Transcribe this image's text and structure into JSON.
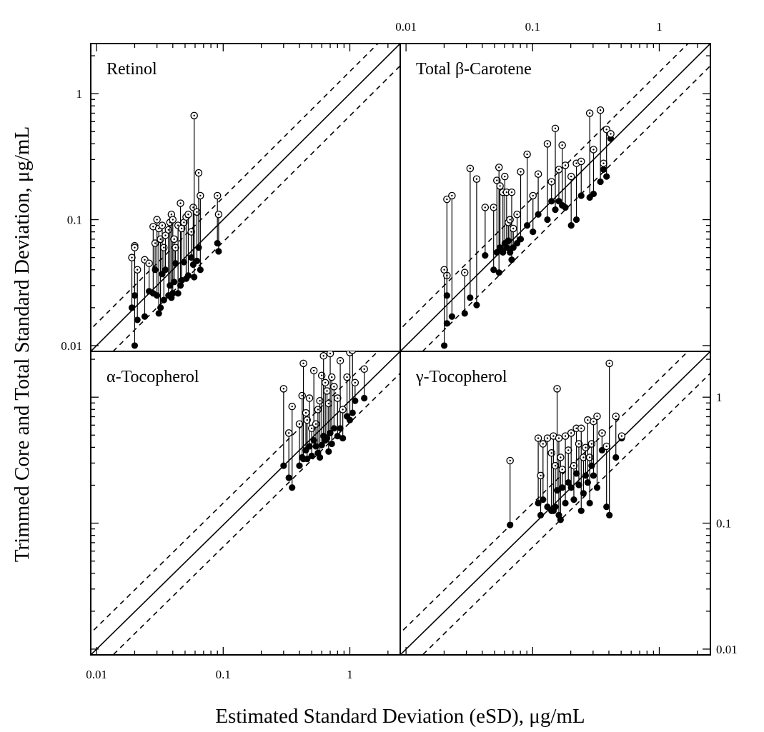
{
  "chart_data": {
    "type": "scatter",
    "xlabel": "Estimated Standard Deviation (eSD),  μg/mL",
    "ylabel": "Trimmed Core and Total Standard Deviation,  μg/mL",
    "scale": "log-log",
    "xlim": [
      0.009,
      2.5
    ],
    "ylim": [
      0.009,
      2.5
    ],
    "tick_labels": [
      "0.01",
      "0.1",
      "1"
    ],
    "reference_lines": {
      "solid": "y = x",
      "dashed": [
        "y = 1.5x",
        "y = x/1.5"
      ]
    },
    "markers": {
      "open_circle": "total SD",
      "filled_circle": "trimmed core SD"
    },
    "panels": [
      {
        "title": "Retinol",
        "pairs": [
          [
            0.019,
            0.02,
            0.05
          ],
          [
            0.02,
            0.025,
            0.062
          ],
          [
            0.02,
            0.01,
            0.06
          ],
          [
            0.021,
            0.016,
            0.04
          ],
          [
            0.024,
            0.017,
            0.048
          ],
          [
            0.026,
            0.027,
            0.045
          ],
          [
            0.028,
            0.026,
            0.088
          ],
          [
            0.029,
            0.04,
            0.065
          ],
          [
            0.03,
            0.025,
            0.1
          ],
          [
            0.031,
            0.018,
            0.085
          ],
          [
            0.032,
            0.02,
            0.07
          ],
          [
            0.033,
            0.037,
            0.09
          ],
          [
            0.034,
            0.023,
            0.06
          ],
          [
            0.035,
            0.04,
            0.075
          ],
          [
            0.037,
            0.025,
            0.083
          ],
          [
            0.038,
            0.03,
            0.095
          ],
          [
            0.039,
            0.024,
            0.11
          ],
          [
            0.04,
            0.026,
            0.1
          ],
          [
            0.041,
            0.032,
            0.07
          ],
          [
            0.042,
            0.045,
            0.06
          ],
          [
            0.044,
            0.026,
            0.09
          ],
          [
            0.046,
            0.03,
            0.135
          ],
          [
            0.047,
            0.033,
            0.085
          ],
          [
            0.049,
            0.046,
            0.095
          ],
          [
            0.051,
            0.034,
            0.105
          ],
          [
            0.053,
            0.036,
            0.11
          ],
          [
            0.056,
            0.05,
            0.08
          ],
          [
            0.058,
            0.044,
            0.125
          ],
          [
            0.059,
            0.035,
            0.67
          ],
          [
            0.062,
            0.047,
            0.115
          ],
          [
            0.064,
            0.06,
            0.235
          ],
          [
            0.066,
            0.04,
            0.155
          ],
          [
            0.09,
            0.065,
            0.155
          ],
          [
            0.092,
            0.056,
            0.11
          ]
        ]
      },
      {
        "title": "Total β-Carotene",
        "pairs": [
          [
            0.02,
            0.01,
            0.04
          ],
          [
            0.021,
            0.015,
            0.036
          ],
          [
            0.021,
            0.025,
            0.145
          ],
          [
            0.023,
            0.017,
            0.155
          ],
          [
            0.029,
            0.018,
            0.038
          ],
          [
            0.032,
            0.024,
            0.255
          ],
          [
            0.036,
            0.021,
            0.21
          ],
          [
            0.042,
            0.052,
            0.125
          ],
          [
            0.049,
            0.04,
            0.125
          ],
          [
            0.052,
            0.055,
            0.205
          ],
          [
            0.054,
            0.038,
            0.26
          ],
          [
            0.055,
            0.06,
            0.185
          ],
          [
            0.058,
            0.055,
            0.165
          ],
          [
            0.06,
            0.065,
            0.22
          ],
          [
            0.062,
            0.06,
            0.165
          ],
          [
            0.064,
            0.068,
            0.095
          ],
          [
            0.066,
            0.055,
            0.1
          ],
          [
            0.068,
            0.048,
            0.165
          ],
          [
            0.07,
            0.06,
            0.085
          ],
          [
            0.075,
            0.065,
            0.11
          ],
          [
            0.08,
            0.07,
            0.24
          ],
          [
            0.09,
            0.09,
            0.33
          ],
          [
            0.1,
            0.08,
            0.155
          ],
          [
            0.11,
            0.11,
            0.23
          ],
          [
            0.13,
            0.1,
            0.4
          ],
          [
            0.14,
            0.14,
            0.2
          ],
          [
            0.15,
            0.12,
            0.53
          ],
          [
            0.16,
            0.14,
            0.25
          ],
          [
            0.17,
            0.13,
            0.39
          ],
          [
            0.18,
            0.125,
            0.27
          ],
          [
            0.2,
            0.09,
            0.22
          ],
          [
            0.22,
            0.1,
            0.28
          ],
          [
            0.24,
            0.155,
            0.29
          ],
          [
            0.28,
            0.15,
            0.7
          ],
          [
            0.3,
            0.16,
            0.36
          ],
          [
            0.34,
            0.2,
            0.74
          ],
          [
            0.36,
            0.25,
            0.28
          ],
          [
            0.38,
            0.22,
            0.52
          ],
          [
            0.41,
            0.44,
            0.48
          ]
        ]
      },
      {
        "title": "α-Tocopherol",
        "pairs": [
          [
            0.3,
            0.3,
            1.25
          ],
          [
            0.33,
            0.24,
            0.55
          ],
          [
            0.35,
            0.2,
            0.9
          ],
          [
            0.4,
            0.3,
            0.65
          ],
          [
            0.42,
            0.35,
            1.1
          ],
          [
            0.43,
            0.34,
            2.0
          ],
          [
            0.45,
            0.4,
            0.8
          ],
          [
            0.46,
            0.34,
            0.7
          ],
          [
            0.48,
            0.43,
            1.05
          ],
          [
            0.5,
            0.36,
            0.6
          ],
          [
            0.52,
            0.48,
            1.75
          ],
          [
            0.54,
            0.43,
            0.65
          ],
          [
            0.56,
            0.38,
            0.85
          ],
          [
            0.58,
            0.35,
            1.0
          ],
          [
            0.6,
            0.44,
            1.6
          ],
          [
            0.62,
            0.52,
            2.3
          ],
          [
            0.64,
            0.48,
            1.4
          ],
          [
            0.66,
            0.5,
            1.2
          ],
          [
            0.68,
            0.39,
            0.95
          ],
          [
            0.7,
            0.55,
            2.4
          ],
          [
            0.72,
            0.45,
            1.55
          ],
          [
            0.75,
            0.6,
            1.3
          ],
          [
            0.8,
            0.52,
            1.05
          ],
          [
            0.84,
            0.6,
            2.1
          ],
          [
            0.88,
            0.5,
            0.85
          ],
          [
            0.95,
            0.75,
            1.55
          ],
          [
            1.0,
            0.7,
            2.45
          ],
          [
            1.05,
            0.8,
            2.55
          ],
          [
            1.1,
            1.0,
            1.4
          ],
          [
            1.3,
            1.05,
            1.8
          ]
        ]
      },
      {
        "title": "γ-Tocopherol",
        "pairs": [
          [
            0.066,
            0.1,
            0.33
          ],
          [
            0.11,
            0.15,
            0.5
          ],
          [
            0.115,
            0.12,
            0.25
          ],
          [
            0.12,
            0.16,
            0.45
          ],
          [
            0.13,
            0.14,
            0.5
          ],
          [
            0.14,
            0.13,
            0.38
          ],
          [
            0.145,
            0.13,
            0.52
          ],
          [
            0.15,
            0.14,
            0.3
          ],
          [
            0.155,
            0.19,
            1.25
          ],
          [
            0.16,
            0.12,
            0.5
          ],
          [
            0.165,
            0.11,
            0.35
          ],
          [
            0.17,
            0.2,
            0.28
          ],
          [
            0.18,
            0.15,
            0.52
          ],
          [
            0.19,
            0.22,
            0.4
          ],
          [
            0.2,
            0.2,
            0.55
          ],
          [
            0.21,
            0.16,
            0.3
          ],
          [
            0.22,
            0.26,
            0.6
          ],
          [
            0.23,
            0.21,
            0.45
          ],
          [
            0.24,
            0.13,
            0.6
          ],
          [
            0.25,
            0.18,
            0.35
          ],
          [
            0.26,
            0.25,
            0.42
          ],
          [
            0.27,
            0.22,
            0.7
          ],
          [
            0.28,
            0.15,
            0.35
          ],
          [
            0.29,
            0.3,
            0.45
          ],
          [
            0.3,
            0.25,
            0.68
          ],
          [
            0.32,
            0.2,
            0.75
          ],
          [
            0.35,
            0.4,
            0.55
          ],
          [
            0.38,
            0.14,
            0.43
          ],
          [
            0.4,
            0.12,
            2.0
          ],
          [
            0.45,
            0.35,
            0.75
          ],
          [
            0.5,
            0.5,
            0.52
          ]
        ]
      }
    ]
  }
}
